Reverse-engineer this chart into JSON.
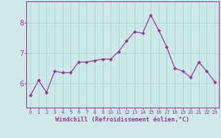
{
  "x": [
    0,
    1,
    2,
    3,
    4,
    5,
    6,
    7,
    8,
    9,
    10,
    11,
    12,
    13,
    14,
    15,
    16,
    17,
    18,
    19,
    20,
    21,
    22,
    23
  ],
  "y": [
    5.6,
    6.1,
    5.7,
    6.4,
    6.35,
    6.35,
    6.7,
    6.7,
    6.75,
    6.8,
    6.8,
    7.05,
    7.4,
    7.7,
    7.65,
    8.25,
    7.75,
    7.2,
    6.5,
    6.4,
    6.2,
    6.7,
    6.4,
    6.05
  ],
  "line_color": "#993399",
  "marker": "D",
  "marker_size": 2.2,
  "bg_color": "#cce8e8",
  "grid_color": "#aad4d4",
  "xlabel": "Windchill (Refroidissement éolien,°C)",
  "xlabel_color": "#993399",
  "tick_color": "#993399",
  "ylim": [
    5.2,
    8.7
  ],
  "yticks": [
    6,
    7,
    8
  ],
  "xlim": [
    -0.5,
    23.5
  ],
  "xtick_fontsize": 5.0,
  "ytick_fontsize": 7.0,
  "xlabel_fontsize": 6.2
}
